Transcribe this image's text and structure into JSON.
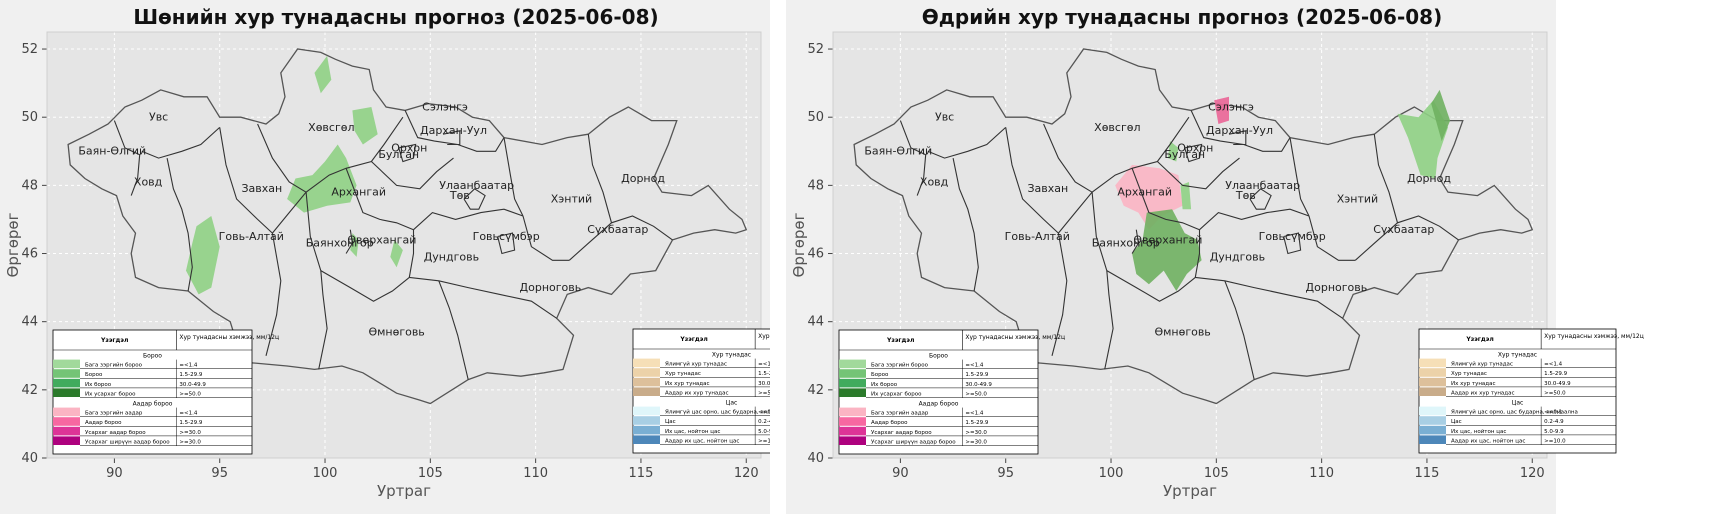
{
  "maps": [
    {
      "id": "night",
      "title": "Шөнийн хур тунадасны прогноз (2025-06-08)",
      "xlabel": "Уртраг",
      "ylabel": "Өргөрөг",
      "x_ticks": [
        "90",
        "95",
        "100",
        "105",
        "110",
        "115",
        "120"
      ],
      "y_ticks": [
        "40",
        "42",
        "44",
        "46",
        "48",
        "50",
        "52"
      ],
      "precip_areas": [
        {
          "category": "Бороо",
          "note": "Хөвсгөл north"
        },
        {
          "category": "Бороо",
          "note": "Хөвсгөл east"
        },
        {
          "category": "Бороо",
          "note": "Завхан–Архангай"
        },
        {
          "category": "Бороо",
          "note": "Говь-Алтай west"
        },
        {
          "category": "Бороо",
          "note": "Баянхонгор"
        },
        {
          "category": "Бороо",
          "note": "Өвөрхангай"
        }
      ]
    },
    {
      "id": "day",
      "title": "Өдрийн хур тунадасны прогноз (2025-06-08)",
      "xlabel": "Уртраг",
      "ylabel": "Өргөрөг",
      "x_ticks": [
        "90",
        "95",
        "100",
        "105",
        "110",
        "115",
        "120"
      ],
      "y_ticks": [
        "40",
        "42",
        "44",
        "46",
        "48",
        "50",
        "52"
      ],
      "precip_areas": [
        {
          "category": "Аадар бороо",
          "note": "Сэлэнгэ"
        },
        {
          "category": "Бага зэргийн аадар",
          "note": "Архангай"
        },
        {
          "category": "Их бороо",
          "note": "Өвөрхангай"
        },
        {
          "category": "Бороо",
          "note": "Булган"
        },
        {
          "category": "Бороо",
          "note": "Дорнод"
        },
        {
          "category": "Их бороо",
          "note": "Дорнод north"
        }
      ]
    }
  ],
  "provinces": [
    {
      "name": "Увс",
      "lon": 92.1,
      "lat": 49.9
    },
    {
      "name": "Баян-Өлгий",
      "lon": 89.9,
      "lat": 48.9
    },
    {
      "name": "Ховд",
      "lon": 91.6,
      "lat": 48.0
    },
    {
      "name": "Завхан",
      "lon": 97.0,
      "lat": 47.8
    },
    {
      "name": "Говь-Алтай",
      "lon": 96.5,
      "lat": 46.4
    },
    {
      "name": "Хөвсгөл",
      "lon": 100.3,
      "lat": 49.6
    },
    {
      "name": "Архангай",
      "lon": 101.6,
      "lat": 47.7
    },
    {
      "name": "Баянхонгор",
      "lon": 100.7,
      "lat": 46.2
    },
    {
      "name": "Өвөрхангай",
      "lon": 102.7,
      "lat": 46.3
    },
    {
      "name": "Булган",
      "lon": 103.5,
      "lat": 48.8
    },
    {
      "name": "Орхон",
      "lon": 104.0,
      "lat": 49.0
    },
    {
      "name": "Сэлэнгэ",
      "lon": 105.7,
      "lat": 50.2
    },
    {
      "name": "Дархан-Уул",
      "lon": 106.1,
      "lat": 49.5
    },
    {
      "name": "Улаанбаатар",
      "lon": 107.2,
      "lat": 47.9
    },
    {
      "name": "Төв",
      "lon": 106.4,
      "lat": 47.6
    },
    {
      "name": "Хэнтий",
      "lon": 111.7,
      "lat": 47.5
    },
    {
      "name": "Дорнод",
      "lon": 115.1,
      "lat": 48.1
    },
    {
      "name": "Сүхбаатар",
      "lon": 113.9,
      "lat": 46.6
    },
    {
      "name": "Говьсүмбэр",
      "lon": 108.6,
      "lat": 46.4
    },
    {
      "name": "Дундговь",
      "lon": 106.0,
      "lat": 45.8
    },
    {
      "name": "Дорноговь",
      "lon": 110.7,
      "lat": 44.9
    },
    {
      "name": "Өмнөговь",
      "lon": 103.4,
      "lat": 43.6
    }
  ],
  "legend_rain": {
    "col_phenomenon": "Үзэгдэл",
    "col_amount": "Хур тунадасны хэмжээ, мм/12ц",
    "groups": [
      {
        "title": "Бороо",
        "rows": [
          {
            "label": "Бага зэргийн бороо",
            "value": "=<1.4",
            "color": "#a1d99b"
          },
          {
            "label": "Бороо",
            "value": "1.5-29.9",
            "color": "#74c476"
          },
          {
            "label": "Их бороо",
            "value": "30.0-49.9",
            "color": "#41ab5d"
          },
          {
            "label": "Их усархаг бороо",
            "value": ">=50.0",
            "color": "#2b7a2b"
          }
        ]
      },
      {
        "title": "Аадар бороо",
        "rows": [
          {
            "label": "Бага зэргийн аадар",
            "value": "=<1.4",
            "color": "#fbb4c3"
          },
          {
            "label": "Аадар бороо",
            "value": "1.5-29.9",
            "color": "#f768a1"
          },
          {
            "label": "Усархаг аадар бороо",
            "value": ">=30.0",
            "color": "#dd3497"
          },
          {
            "label": "Усархаг ширүүн аадар бороо",
            "value": ">=30.0",
            "color": "#ae017e"
          }
        ]
      }
    ]
  },
  "legend_snow": {
    "col_phenomenon": "Үзэгдэл",
    "col_amount": "Хур тунадасны хэмжээ, мм/12ц",
    "groups": [
      {
        "title": "Хур тунадас",
        "rows": [
          {
            "label": "Ялимгүй хур тунадас",
            "value": "=<1.4",
            "color": "#f6dfb7"
          },
          {
            "label": "Хур тунадас",
            "value": "1.5-29.9",
            "color": "#ecd2a9"
          },
          {
            "label": "Их хур тунадас",
            "value": "30.0-49.9",
            "color": "#ddc09b"
          },
          {
            "label": "Аадар их хур тунадас",
            "value": ">=50.0",
            "color": "#c9ac8a"
          }
        ]
      },
      {
        "title": "Цас",
        "rows": [
          {
            "label": "Ялимгүй цас орно, цас бударна, хялмаална",
            "value": "<=0.1",
            "color": "#dff6fa"
          },
          {
            "label": "Цас",
            "value": "0.2-4.9",
            "color": "#a8cfe4"
          },
          {
            "label": "Их цас, нойтон цас",
            "value": "5.0-9.9",
            "color": "#7aafd3"
          },
          {
            "label": "Аадар их цас, нойтон цас",
            "value": ">=10.0",
            "color": "#4d87b9"
          }
        ]
      }
    ]
  },
  "colors": {
    "plot_bg": "#e5e5e5",
    "fig_bg": "#f0f0f0",
    "grid": "#ffffff",
    "border": "#555555"
  }
}
